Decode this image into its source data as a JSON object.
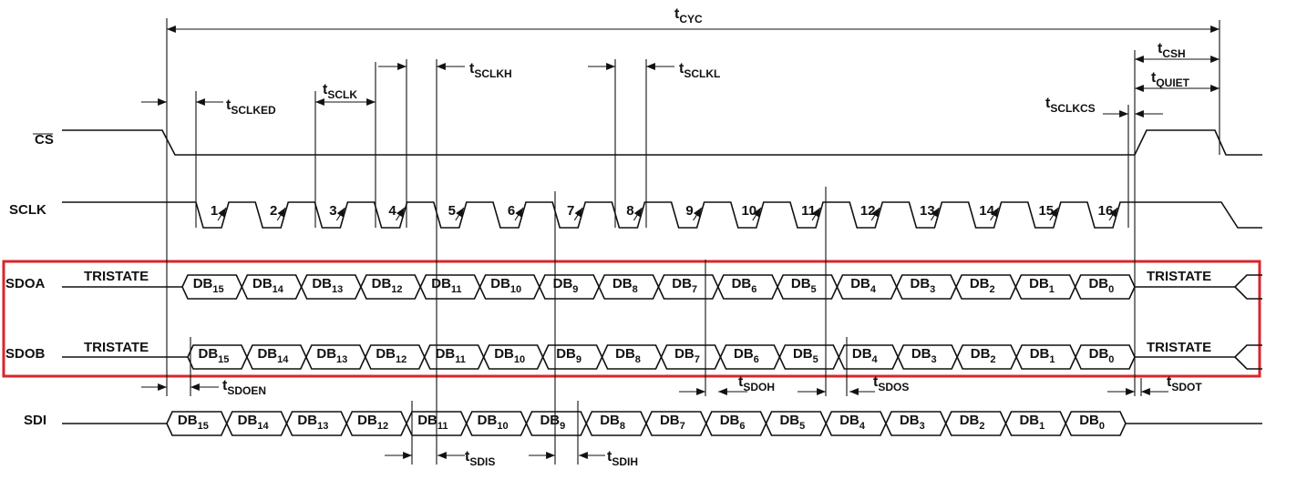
{
  "signals": [
    "CS",
    "SCLK",
    "SDOA",
    "SDOB",
    "SDI"
  ],
  "sclk_pulses": [
    "1",
    "2",
    "3",
    "4",
    "5",
    "6",
    "7",
    "8",
    "9",
    "10",
    "11",
    "12",
    "13",
    "14",
    "15",
    "16"
  ],
  "tristate_labels": [
    "TRISTATE",
    "TRISTATE",
    "TRISTATE",
    "TRISTATE"
  ],
  "data_words": [
    [
      {
        "main": "DB",
        "sub": "15"
      },
      {
        "main": "DB",
        "sub": "14"
      },
      {
        "main": "DB",
        "sub": "13"
      },
      {
        "main": "DB",
        "sub": "12"
      },
      {
        "main": "DB",
        "sub": "11"
      },
      {
        "main": "DB",
        "sub": "10"
      },
      {
        "main": "DB",
        "sub": "9"
      },
      {
        "main": "DB",
        "sub": "8"
      },
      {
        "main": "DB",
        "sub": "7"
      },
      {
        "main": "DB",
        "sub": "6"
      },
      {
        "main": "DB",
        "sub": "5"
      },
      {
        "main": "DB",
        "sub": "4"
      },
      {
        "main": "DB",
        "sub": "3"
      },
      {
        "main": "DB",
        "sub": "2"
      },
      {
        "main": "DB",
        "sub": "1"
      },
      {
        "main": "DB",
        "sub": "0"
      }
    ],
    [
      {
        "main": "DB",
        "sub": "15"
      },
      {
        "main": "DB",
        "sub": "14"
      },
      {
        "main": "DB",
        "sub": "13"
      },
      {
        "main": "DB",
        "sub": "12"
      },
      {
        "main": "DB",
        "sub": "11"
      },
      {
        "main": "DB",
        "sub": "10"
      },
      {
        "main": "DB",
        "sub": "9"
      },
      {
        "main": "DB",
        "sub": "8"
      },
      {
        "main": "DB",
        "sub": "7"
      },
      {
        "main": "DB",
        "sub": "6"
      },
      {
        "main": "DB",
        "sub": "5"
      },
      {
        "main": "DB",
        "sub": "4"
      },
      {
        "main": "DB",
        "sub": "3"
      },
      {
        "main": "DB",
        "sub": "2"
      },
      {
        "main": "DB",
        "sub": "1"
      },
      {
        "main": "DB",
        "sub": "0"
      }
    ],
    [
      {
        "main": "DB",
        "sub": "15"
      },
      {
        "main": "DB",
        "sub": "14"
      },
      {
        "main": "DB",
        "sub": "13"
      },
      {
        "main": "DB",
        "sub": "12"
      },
      {
        "main": "DB",
        "sub": "11"
      },
      {
        "main": "DB",
        "sub": "10"
      },
      {
        "main": "DB",
        "sub": "9"
      },
      {
        "main": "DB",
        "sub": "8"
      },
      {
        "main": "DB",
        "sub": "7"
      },
      {
        "main": "DB",
        "sub": "6"
      },
      {
        "main": "DB",
        "sub": "5"
      },
      {
        "main": "DB",
        "sub": "4"
      },
      {
        "main": "DB",
        "sub": "3"
      },
      {
        "main": "DB",
        "sub": "2"
      },
      {
        "main": "DB",
        "sub": "1"
      },
      {
        "main": "DB",
        "sub": "0"
      }
    ]
  ],
  "timings": [
    {
      "main": "t",
      "sub": "CYC"
    },
    {
      "main": "t",
      "sub": "SCLKED"
    },
    {
      "main": "t",
      "sub": "SCLK"
    },
    {
      "main": "t",
      "sub": "SCLKH"
    },
    {
      "main": "t",
      "sub": "SCLKL"
    },
    {
      "main": "t",
      "sub": "SCLKCS"
    },
    {
      "main": "t",
      "sub": "CSH"
    },
    {
      "main": "t",
      "sub": "QUIET"
    },
    {
      "main": "t",
      "sub": "SDOEN"
    },
    {
      "main": "t",
      "sub": "SDOH"
    },
    {
      "main": "t",
      "sub": "SDOS"
    },
    {
      "main": "t",
      "sub": "SDOT"
    },
    {
      "main": "t",
      "sub": "SDIS"
    },
    {
      "main": "t",
      "sub": "SDIH"
    }
  ]
}
